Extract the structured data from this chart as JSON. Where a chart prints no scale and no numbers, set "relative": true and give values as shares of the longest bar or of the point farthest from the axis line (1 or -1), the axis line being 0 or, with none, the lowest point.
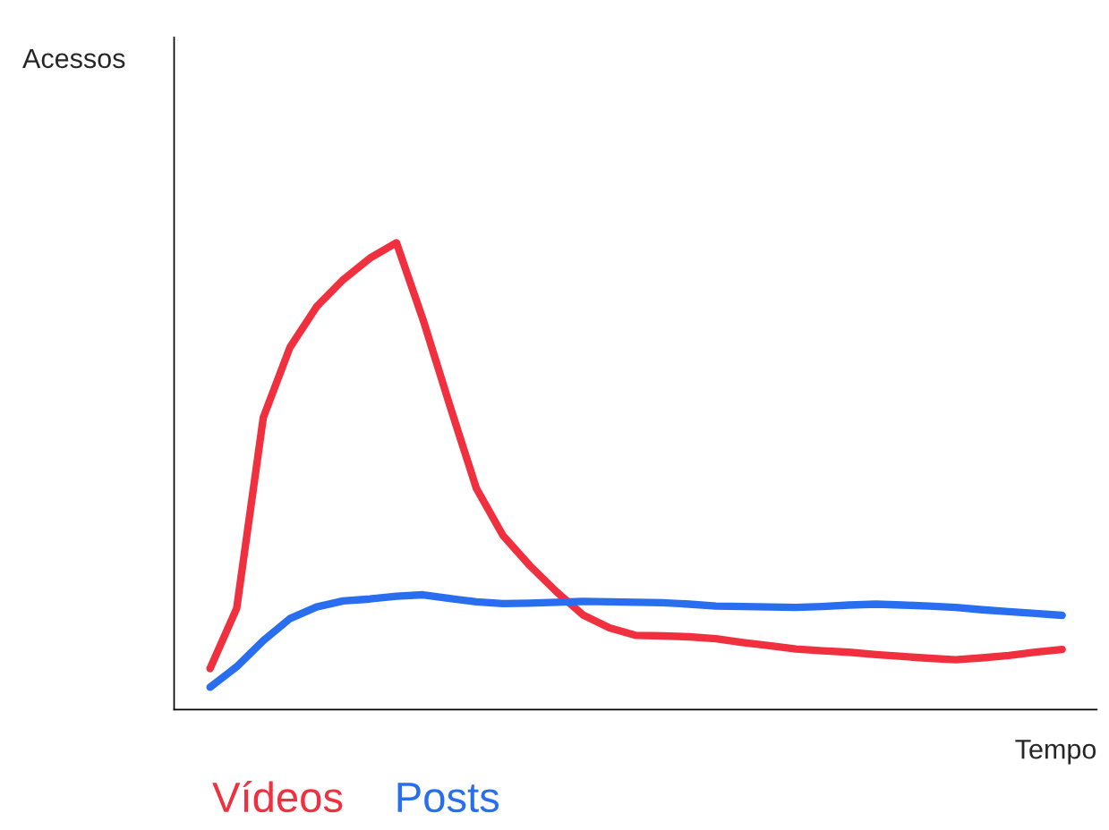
{
  "chart_data": {
    "type": "line",
    "relative": true,
    "xlabel": "Tempo",
    "annotations": [
      "Acessos"
    ],
    "legend": "bottom left",
    "marker": "none",
    "line_style": "solid",
    "categories": [
      null,
      null,
      null,
      null,
      null,
      null,
      null,
      null,
      null,
      null,
      null,
      null,
      null,
      null,
      null,
      null,
      null,
      null,
      null,
      null,
      null,
      null,
      null,
      null,
      null,
      null,
      null,
      null,
      null,
      null,
      null,
      null,
      null
    ],
    "series": [
      {
        "name": "Vídeos",
        "color": "#f0303f",
        "values": [
          0.088,
          0.217,
          0.626,
          0.776,
          0.863,
          0.921,
          0.967,
          1,
          0.835,
          0.652,
          0.474,
          0.373,
          0.309,
          0.253,
          0.203,
          0.175,
          0.159,
          0.158,
          0.156,
          0.152,
          0.144,
          0.137,
          0.13,
          0.126,
          0.123,
          0.118,
          0.114,
          0.11,
          0.107,
          0.111,
          0.116,
          0.123,
          0.129
        ]
      },
      {
        "name": "Posts",
        "color": "#2a6ef0",
        "values": [
          0.048,
          0.092,
          0.148,
          0.195,
          0.22,
          0.233,
          0.237,
          0.243,
          0.246,
          0.238,
          0.231,
          0.227,
          0.228,
          0.23,
          0.232,
          0.231,
          0.23,
          0.229,
          0.226,
          0.222,
          0.221,
          0.22,
          0.219,
          0.221,
          0.224,
          0.226,
          0.224,
          0.222,
          0.219,
          0.214,
          0.21,
          0.206,
          0.202
        ]
      }
    ]
  }
}
